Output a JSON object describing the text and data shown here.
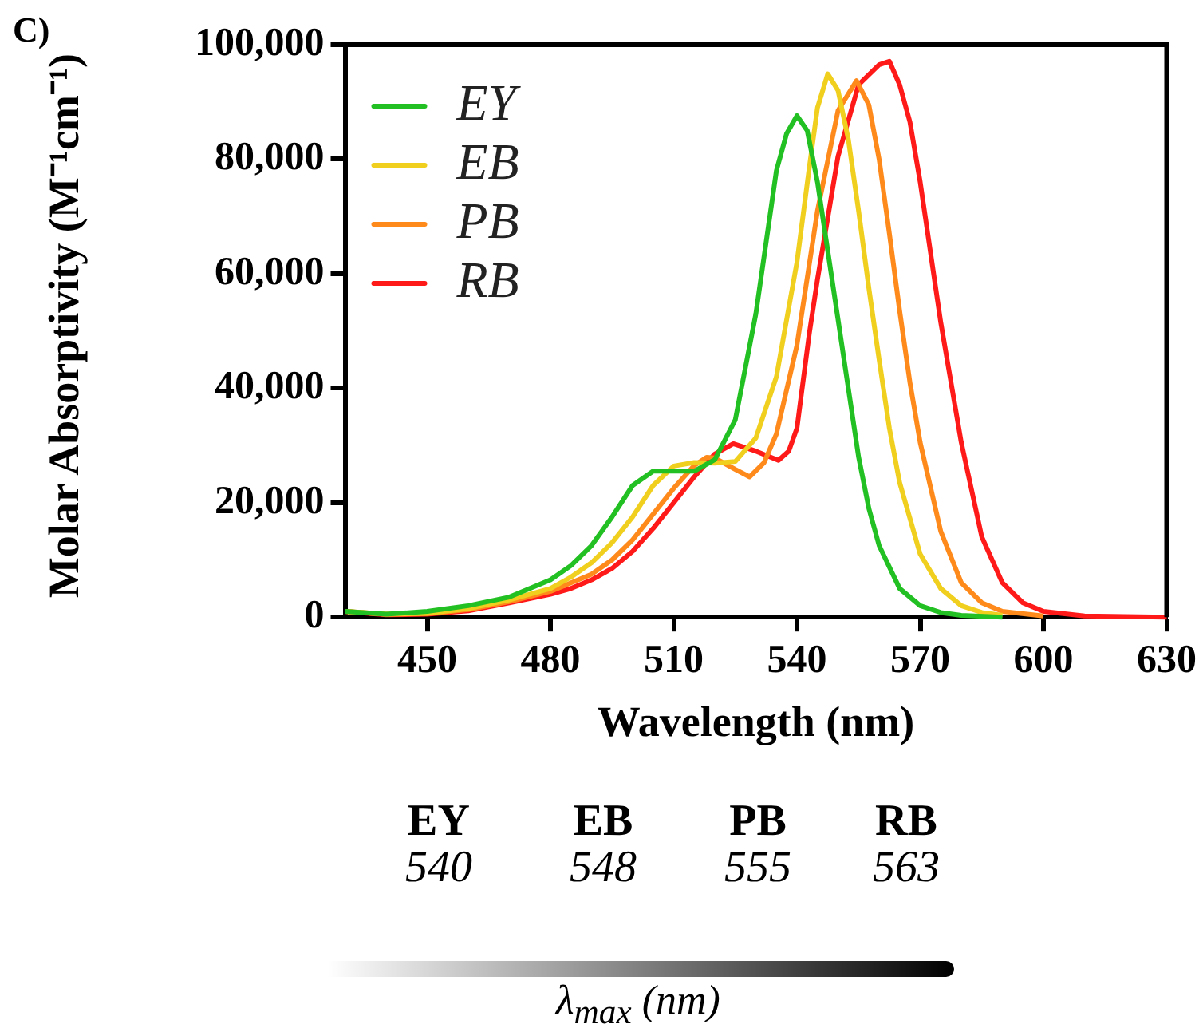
{
  "chart_data": {
    "type": "line",
    "xlabel": "Wavelength (nm)",
    "ylabel": "Molar Absorptivity (M⁻¹cm⁻¹)",
    "xlim": [
      430,
      630
    ],
    "xticks": [
      450,
      480,
      510,
      540,
      570,
      600,
      630
    ],
    "ylim": [
      0,
      100000
    ],
    "yticks": [
      {
        "value": 0,
        "label": "0"
      },
      {
        "value": 20000,
        "label": "20,000"
      },
      {
        "value": 40000,
        "label": "40,000"
      },
      {
        "value": 60000,
        "label": "60,000"
      },
      {
        "value": 80000,
        "label": "80,000"
      },
      {
        "value": 100000,
        "label": "100,000"
      }
    ],
    "grid": false,
    "legend": "top left",
    "marker": "none",
    "line_style": "solid",
    "annotations": [
      "C)",
      "EY",
      "540",
      "EB",
      "548",
      "PB",
      "555",
      "RB",
      "563",
      "λ$_{max}$ (nm)"
    ],
    "series": [
      {
        "name": "EY",
        "color": "#22c022",
        "x": [
          430,
          440,
          450,
          460,
          470,
          480,
          485,
          490,
          495,
          500,
          505,
          510,
          515,
          520,
          525,
          530,
          535,
          537.5,
          540,
          542.5,
          545,
          547.5,
          550,
          552.5,
          555,
          557.5,
          560,
          565,
          570,
          575,
          580,
          590
        ],
        "values": [
          1000,
          500,
          1000,
          2000,
          3500,
          6500,
          9000,
          12500,
          17500,
          23000,
          25500,
          25500,
          25500,
          27500,
          34500,
          53000,
          78000,
          84500,
          87600,
          85000,
          76000,
          64000,
          52000,
          40000,
          28000,
          19000,
          12500,
          5000,
          2000,
          800,
          300,
          0
        ]
      },
      {
        "name": "EB",
        "color": "#f0cf1e",
        "x": [
          430,
          440,
          450,
          460,
          470,
          480,
          485,
          490,
          495,
          500,
          505,
          510,
          515,
          520,
          525,
          530,
          535,
          540,
          543,
          545,
          547.5,
          550,
          552.5,
          555,
          557.5,
          560,
          562.5,
          565,
          570,
          575,
          580,
          585,
          590
        ],
        "values": [
          1000,
          500,
          700,
          1500,
          3000,
          5000,
          7000,
          9500,
          13000,
          17500,
          23000,
          26400,
          27000,
          26900,
          27200,
          31300,
          42000,
          62000,
          78500,
          89000,
          94900,
          92000,
          83500,
          71000,
          57500,
          45000,
          33000,
          23500,
          11000,
          5000,
          2000,
          800,
          300
        ]
      },
      {
        "name": "PB",
        "color": "#ff8a1c",
        "x": [
          430,
          440,
          450,
          460,
          470,
          480,
          485,
          490,
          495,
          500,
          505,
          510,
          515,
          518,
          520,
          525,
          528.5,
          532,
          535,
          540,
          545,
          550,
          554.5,
          557.5,
          560,
          562.5,
          565,
          567.5,
          570,
          575,
          580,
          585,
          590,
          600
        ],
        "values": [
          1000,
          500,
          600,
          1300,
          2700,
          4500,
          6000,
          7500,
          10000,
          13500,
          18000,
          22500,
          26500,
          27900,
          27800,
          25800,
          24500,
          27000,
          32000,
          47500,
          71000,
          88500,
          93700,
          89500,
          80000,
          67000,
          53500,
          41000,
          30500,
          15000,
          6000,
          2500,
          1000,
          200
        ]
      },
      {
        "name": "RB",
        "color": "#ff1a1a",
        "x": [
          430,
          440,
          450,
          460,
          470,
          480,
          485,
          490,
          495,
          500,
          505,
          510,
          515,
          520,
          524.5,
          530,
          535.5,
          538,
          540,
          543,
          545,
          550,
          555,
          560,
          562.5,
          565,
          567.5,
          570,
          575,
          580,
          585,
          590,
          595,
          600,
          610,
          630
        ],
        "values": [
          1000,
          400,
          500,
          1100,
          2500,
          4000,
          5000,
          6500,
          8500,
          11500,
          15500,
          20000,
          24500,
          28500,
          30300,
          29000,
          27400,
          29000,
          33000,
          49500,
          59000,
          80500,
          93000,
          96500,
          97100,
          93000,
          86500,
          76000,
          51500,
          30500,
          14000,
          6000,
          2500,
          1000,
          200,
          0
        ]
      }
    ]
  }
}
